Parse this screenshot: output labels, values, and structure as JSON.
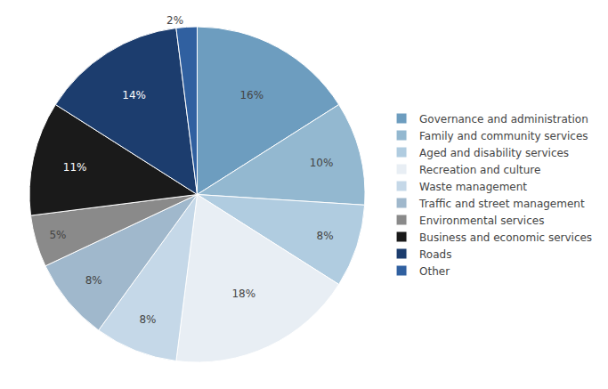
{
  "chart_data": {
    "type": "pie",
    "categories": [
      "Governance and administration",
      "Family and community services",
      "Aged and disability services",
      "Recreation and culture",
      "Waste management",
      "Traffic and street management",
      "Environmental services",
      "Business and economic services",
      "Roads",
      "Other"
    ],
    "values": [
      16,
      10,
      8,
      18,
      8,
      8,
      5,
      11,
      14,
      2
    ],
    "value_labels": [
      "16%",
      "10%",
      "8%",
      "18%",
      "8%",
      "8%",
      "5%",
      "11%",
      "14%",
      "2%"
    ],
    "colors": [
      "#6d9dbf",
      "#93b8d0",
      "#b0cce0",
      "#e8eef4",
      "#c5d8e8",
      "#a0b8cc",
      "#8a8a8a",
      "#1a1a1a",
      "#1c3d6e",
      "#3060a0"
    ],
    "legend": "right"
  }
}
